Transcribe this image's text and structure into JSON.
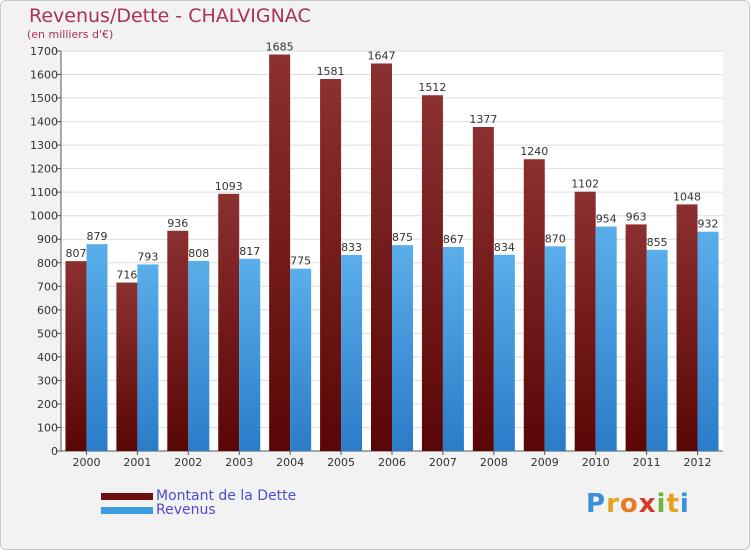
{
  "header": {
    "title": "Revenus/Dette - CHALVIGNAC",
    "subtitle": "(en milliers d'€)"
  },
  "chart_data": {
    "type": "bar",
    "title": "Revenus/Dette - CHALVIGNAC",
    "subtitle": "(en milliers d'€)",
    "xlabel": "",
    "ylabel": "",
    "ylim": [
      0,
      1700
    ],
    "y_ticks": [
      0,
      100,
      200,
      300,
      400,
      500,
      600,
      700,
      800,
      900,
      1000,
      1100,
      1200,
      1300,
      1400,
      1500,
      1600,
      1700
    ],
    "grid": true,
    "legend_position": "bottom-left",
    "categories": [
      "2000",
      "2001",
      "2002",
      "2003",
      "2004",
      "2005",
      "2006",
      "2007",
      "2008",
      "2009",
      "2010",
      "2011",
      "2012"
    ],
    "series": [
      {
        "name": "Montant de la Dette",
        "color": "#7a1a1a",
        "values": [
          807,
          716,
          936,
          1093,
          1685,
          1581,
          1647,
          1512,
          1377,
          1240,
          1102,
          963,
          1048
        ]
      },
      {
        "name": "Revenus",
        "color": "#3d9be0",
        "values": [
          879,
          793,
          808,
          817,
          775,
          833,
          875,
          867,
          834,
          870,
          954,
          855,
          932
        ]
      }
    ]
  },
  "legend": {
    "items": [
      {
        "label": "Montant de la Dette",
        "color": "#6b0f0f"
      },
      {
        "label": "Revenus",
        "color": "#3d9be0"
      }
    ]
  },
  "logo": {
    "letters": [
      {
        "ch": "P",
        "color": "#3a8fd8"
      },
      {
        "ch": "r",
        "color": "#e8a020"
      },
      {
        "ch": "o",
        "color": "#e87a20"
      },
      {
        "ch": "x",
        "color": "#d83a2a"
      },
      {
        "ch": "i",
        "color": "#6cb83a"
      },
      {
        "ch": "t",
        "color": "#e8a020"
      },
      {
        "ch": "i",
        "color": "#3a8fd8"
      }
    ]
  }
}
